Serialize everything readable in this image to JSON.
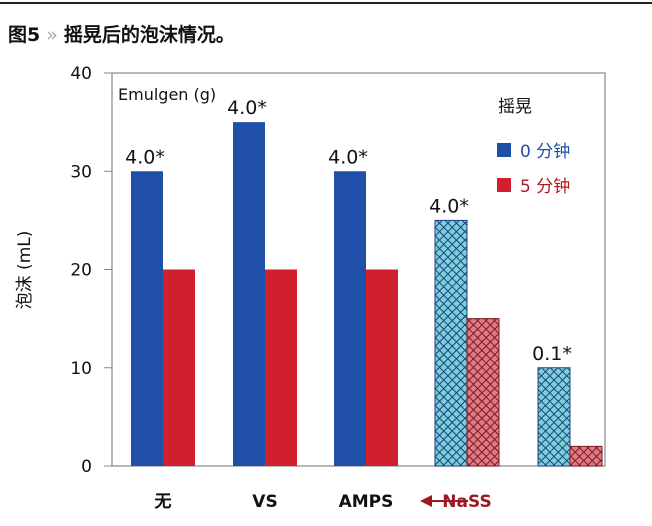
{
  "caption": {
    "figure": "图5",
    "separator": "»",
    "text": "摇晃后的泡沫情况。"
  },
  "chart_data": {
    "type": "bar",
    "title": "",
    "annotation": "Emulgen (g)",
    "ylabel": "泡沫 (mL)",
    "xlabel": "",
    "ylim": [
      0,
      40
    ],
    "yticks": [
      0,
      10,
      20,
      30,
      40
    ],
    "grid": false,
    "legend_title": "摇晃",
    "legend_placement": "top-right",
    "categories": [
      "无",
      "VS",
      "AMPS",
      "NaSS",
      ""
    ],
    "arrow_label": "←",
    "series": [
      {
        "name": "0 分钟",
        "color": "#1f4fa8",
        "values": [
          30,
          35,
          30,
          25,
          10
        ]
      },
      {
        "name": "5 分钟",
        "color": "#d0202e",
        "values": [
          20,
          20,
          20,
          15,
          2
        ]
      }
    ],
    "hatched_categories": [
      "NaSS",
      ""
    ],
    "data_labels": [
      "4.0*",
      "4.0*",
      "4.0*",
      "4.0*",
      "0.1*"
    ]
  }
}
